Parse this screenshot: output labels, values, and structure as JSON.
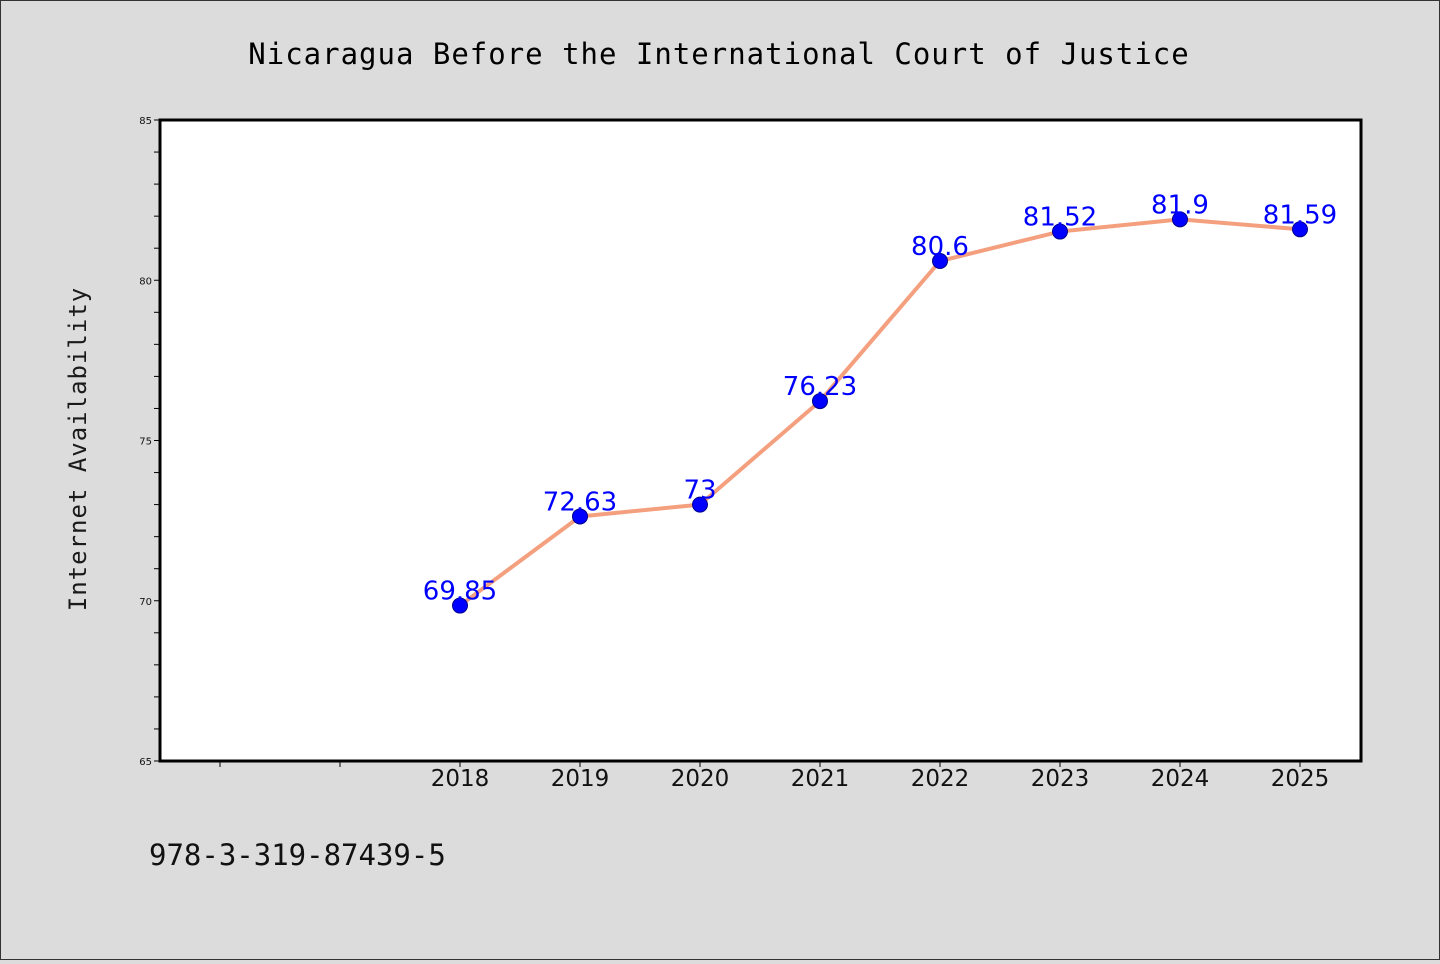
{
  "chart_data": {
    "type": "line",
    "title": "Nicaragua Before the International Court of Justice",
    "xlabel": "",
    "ylabel": "Internet Availability",
    "categories": [
      "2018",
      "2019",
      "2020",
      "2021",
      "2022",
      "2023",
      "2024",
      "2025"
    ],
    "series": [
      {
        "values": [
          69.85,
          72.63,
          73,
          76.23,
          80.6,
          81.52,
          81.9,
          81.59
        ],
        "data_labels": [
          "69.85",
          "72.63",
          "73",
          "76.23",
          "80.6",
          "81.52",
          "81.9",
          "81.59"
        ]
      }
    ],
    "ylim": [
      65,
      85
    ],
    "yticks": [
      "65",
      "70",
      "75",
      "80",
      "85"
    ],
    "grid": false,
    "colors": {
      "line": "#f4a07f",
      "marker": "#0000ff",
      "marker_edge": "#00008b",
      "data_label": "#0000ff",
      "plot_background": "#ffffff",
      "figure_background": "#dcdcdc"
    }
  },
  "footer": {
    "isbn": "978-3-319-87439-5"
  }
}
